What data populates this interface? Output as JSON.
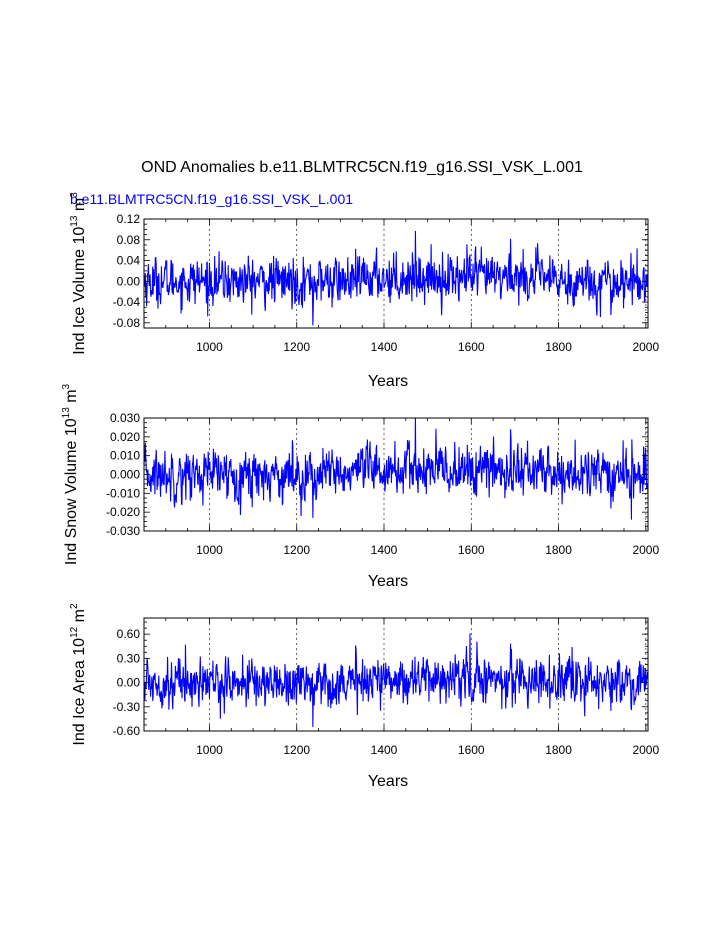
{
  "page": {
    "title": "OND Anomalies b.e11.BLMTRC5CN.f19_g16.SSI_VSK_L.001",
    "subtitle": "b.e11.BLMTRC5CN.f19_g16.SSI_VSK_L.001"
  },
  "colors": {
    "series": "#0000ff",
    "axes": "#000000",
    "background": "#ffffff",
    "subtitle": "#0000ff"
  },
  "chart_data": [
    {
      "type": "line",
      "ylabel": "Ind Ice Volume 10^13 m^3",
      "ylabel_parts": {
        "main": "Ind Ice Volume 10",
        "exp1": "13",
        "mid": " m",
        "exp2": "3"
      },
      "xlabel": "Years",
      "xlim": [
        850,
        2005
      ],
      "ylim": [
        -0.09,
        0.12
      ],
      "xticks": [
        1000,
        1200,
        1400,
        1600,
        1800,
        2000
      ],
      "xtick_labels": [
        "1000",
        "1200",
        "1400",
        "1600",
        "1800",
        "2000"
      ],
      "yticks": [
        -0.08,
        -0.04,
        0.0,
        0.04,
        0.08,
        0.12
      ],
      "ytick_labels": [
        "-0.08",
        "-0.04",
        "0.00",
        "0.04",
        "0.08",
        "0.12"
      ],
      "grid": "dashed vertical lines at x ticks",
      "series": [
        {
          "x_start": 850,
          "x_end": 2005,
          "noise_std": 0.022,
          "notable_points": [
            [
              1237,
              -0.085
            ],
            [
              1472,
              0.097
            ],
            [
              1690,
              0.082
            ],
            [
              1920,
              -0.065
            ],
            [
              1590,
              0.071
            ]
          ]
        }
      ]
    },
    {
      "type": "line",
      "ylabel": "Ind Snow Volume 10^13 m^3",
      "ylabel_parts": {
        "main": "Ind Snow Volume 10",
        "exp1": "13",
        "mid": " m",
        "exp2": "3"
      },
      "xlabel": "Years",
      "xlim": [
        850,
        2005
      ],
      "ylim": [
        -0.03,
        0.03
      ],
      "xticks": [
        1000,
        1200,
        1400,
        1600,
        1800,
        2000
      ],
      "xtick_labels": [
        "1000",
        "1200",
        "1400",
        "1600",
        "1800",
        "2000"
      ],
      "yticks": [
        -0.03,
        -0.02,
        -0.01,
        0.0,
        0.01,
        0.02,
        0.03
      ],
      "ytick_labels": [
        "-0.030",
        "-0.020",
        "-0.010",
        "0.000",
        "0.010",
        "0.020",
        "0.030"
      ],
      "grid": "dashed vertical lines at x ticks",
      "series": [
        {
          "x_start": 850,
          "x_end": 2005,
          "noise_std": 0.0065,
          "notable_points": [
            [
              1237,
              -0.023
            ],
            [
              1472,
              0.03
            ],
            [
              1690,
              0.024
            ],
            [
              1920,
              -0.018
            ]
          ]
        }
      ]
    },
    {
      "type": "line",
      "ylabel": "Ind Ice Area 10^12 m^2",
      "ylabel_parts": {
        "main": "Ind Ice Area 10",
        "exp1": "12",
        "mid": " m",
        "exp2": "2"
      },
      "xlabel": "Years",
      "xlim": [
        850,
        2005
      ],
      "ylim": [
        -0.6,
        0.8
      ],
      "xticks": [
        1000,
        1200,
        1400,
        1600,
        1800,
        2000
      ],
      "xtick_labels": [
        "1000",
        "1200",
        "1400",
        "1600",
        "1800",
        "2000"
      ],
      "yticks": [
        -0.6,
        -0.3,
        0.0,
        0.3,
        0.6
      ],
      "ytick_labels": [
        "-0.60",
        "-0.30",
        "0.00",
        "0.30",
        "0.60"
      ],
      "grid": "dashed vertical lines at x ticks",
      "series": [
        {
          "x_start": 850,
          "x_end": 2005,
          "noise_std": 0.14,
          "notable_points": [
            [
              1237,
              -0.55
            ],
            [
              1597,
              0.61
            ],
            [
              945,
              0.47
            ],
            [
              1920,
              -0.35
            ]
          ]
        }
      ]
    }
  ]
}
